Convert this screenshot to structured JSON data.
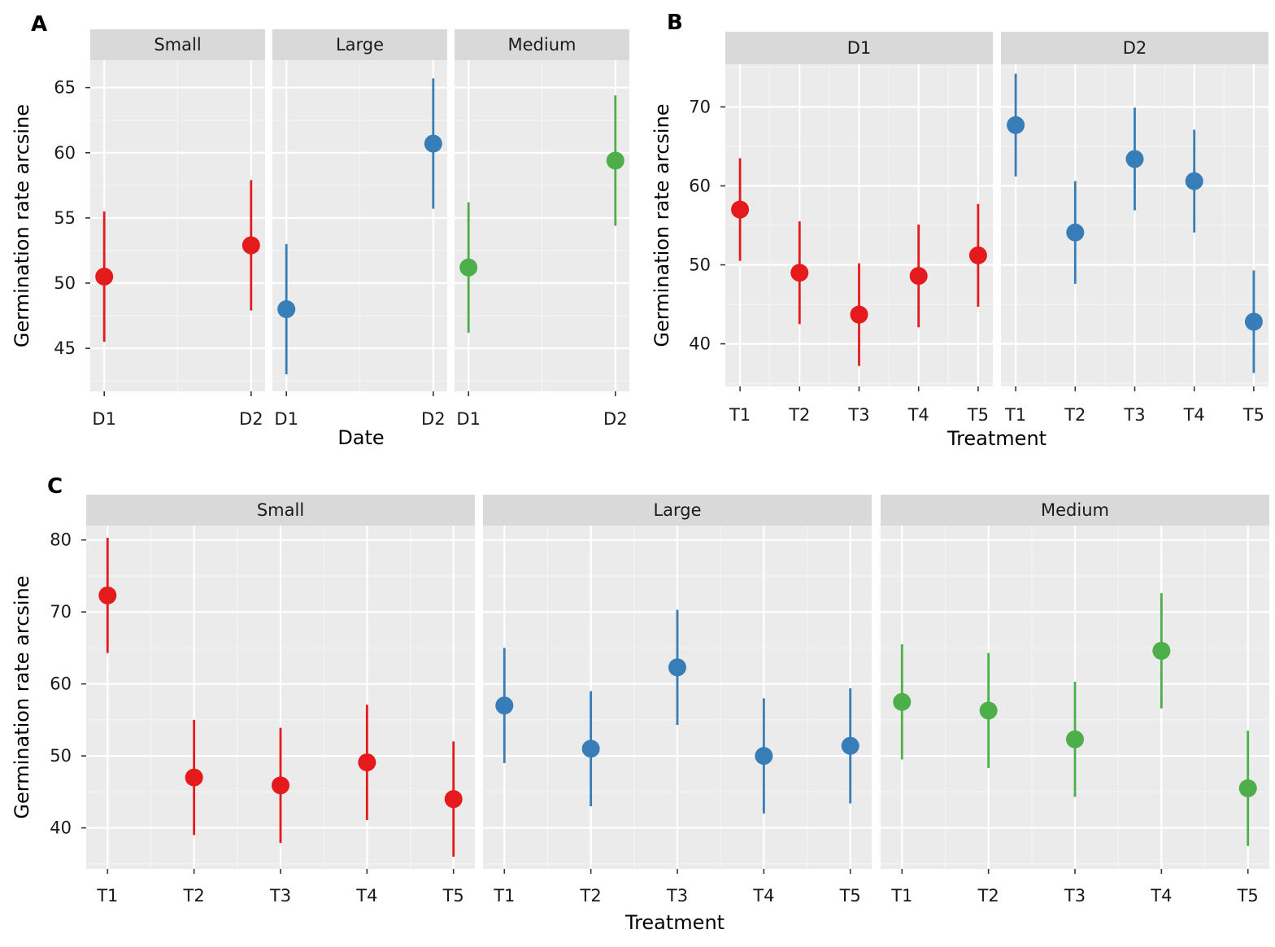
{
  "colors": {
    "red": "#e41a1c",
    "blue": "#377eb8",
    "green": "#4daf4a"
  },
  "chart_data": [
    {
      "id": "A",
      "type": "scatter",
      "panel_label": "A",
      "xlabel": "Date",
      "ylabel": "Germination rate arcsine",
      "ylim": [
        41.7,
        67.1
      ],
      "yticks": [
        45,
        50,
        55,
        60,
        65
      ],
      "categories": [
        "D1",
        "D2"
      ],
      "grid": true,
      "facets": [
        {
          "name": "Small",
          "color": "#e41a1c",
          "points": [
            {
              "x": "D1",
              "y": 50.5,
              "lower": 45.5,
              "upper": 55.5
            },
            {
              "x": "D2",
              "y": 52.9,
              "lower": 47.9,
              "upper": 57.9
            }
          ]
        },
        {
          "name": "Large",
          "color": "#377eb8",
          "points": [
            {
              "x": "D1",
              "y": 48.0,
              "lower": 43.0,
              "upper": 53.0
            },
            {
              "x": "D2",
              "y": 60.7,
              "lower": 55.7,
              "upper": 65.7
            }
          ]
        },
        {
          "name": "Medium",
          "color": "#4daf4a",
          "points": [
            {
              "x": "D1",
              "y": 51.2,
              "lower": 46.2,
              "upper": 56.2
            },
            {
              "x": "D2",
              "y": 59.4,
              "lower": 54.4,
              "upper": 64.4
            }
          ]
        }
      ]
    },
    {
      "id": "B",
      "type": "scatter",
      "panel_label": "B",
      "xlabel": "Treatment",
      "ylabel": "Germination rate arcsine",
      "ylim": [
        34.6,
        75.4
      ],
      "yticks": [
        40,
        50,
        60,
        70
      ],
      "categories": [
        "T1",
        "T2",
        "T3",
        "T4",
        "T5"
      ],
      "grid": true,
      "facets": [
        {
          "name": "D1",
          "color": "#e41a1c",
          "points": [
            {
              "x": "T1",
              "y": 57.0,
              "lower": 50.5,
              "upper": 63.5
            },
            {
              "x": "T2",
              "y": 49.0,
              "lower": 42.5,
              "upper": 55.5
            },
            {
              "x": "T3",
              "y": 43.7,
              "lower": 37.2,
              "upper": 50.2
            },
            {
              "x": "T4",
              "y": 48.6,
              "lower": 42.1,
              "upper": 55.1
            },
            {
              "x": "T5",
              "y": 51.2,
              "lower": 44.7,
              "upper": 57.7
            }
          ]
        },
        {
          "name": "D2",
          "color": "#377eb8",
          "points": [
            {
              "x": "T1",
              "y": 67.7,
              "lower": 61.2,
              "upper": 74.2
            },
            {
              "x": "T2",
              "y": 54.1,
              "lower": 47.6,
              "upper": 60.6
            },
            {
              "x": "T3",
              "y": 63.4,
              "lower": 56.9,
              "upper": 69.9
            },
            {
              "x": "T4",
              "y": 60.6,
              "lower": 54.1,
              "upper": 67.1
            },
            {
              "x": "T5",
              "y": 42.8,
              "lower": 36.3,
              "upper": 49.3
            }
          ]
        }
      ]
    },
    {
      "id": "C",
      "type": "scatter",
      "panel_label": "C",
      "xlabel": "Treatment",
      "ylabel": "Germination rate arcsine",
      "ylim": [
        34.3,
        82.0
      ],
      "yticks": [
        40,
        50,
        60,
        70,
        80
      ],
      "categories": [
        "T1",
        "T2",
        "T3",
        "T4",
        "T5"
      ],
      "grid": true,
      "facets": [
        {
          "name": "Small",
          "color": "#e41a1c",
          "points": [
            {
              "x": "T1",
              "y": 72.3,
              "lower": 64.3,
              "upper": 80.3
            },
            {
              "x": "T2",
              "y": 47.0,
              "lower": 39.0,
              "upper": 55.0
            },
            {
              "x": "T3",
              "y": 45.9,
              "lower": 37.9,
              "upper": 53.9
            },
            {
              "x": "T4",
              "y": 49.1,
              "lower": 41.1,
              "upper": 57.1
            },
            {
              "x": "T5",
              "y": 44.0,
              "lower": 36.0,
              "upper": 52.0
            }
          ]
        },
        {
          "name": "Large",
          "color": "#377eb8",
          "points": [
            {
              "x": "T1",
              "y": 57.0,
              "lower": 49.0,
              "upper": 65.0
            },
            {
              "x": "T2",
              "y": 51.0,
              "lower": 43.0,
              "upper": 59.0
            },
            {
              "x": "T3",
              "y": 62.3,
              "lower": 54.3,
              "upper": 70.3
            },
            {
              "x": "T4",
              "y": 50.0,
              "lower": 42.0,
              "upper": 58.0
            },
            {
              "x": "T5",
              "y": 51.4,
              "lower": 43.4,
              "upper": 59.4
            }
          ]
        },
        {
          "name": "Medium",
          "color": "#4daf4a",
          "points": [
            {
              "x": "T1",
              "y": 57.5,
              "lower": 49.5,
              "upper": 65.5
            },
            {
              "x": "T2",
              "y": 56.3,
              "lower": 48.3,
              "upper": 64.3
            },
            {
              "x": "T3",
              "y": 52.3,
              "lower": 44.3,
              "upper": 60.3
            },
            {
              "x": "T4",
              "y": 64.6,
              "lower": 56.6,
              "upper": 72.6
            },
            {
              "x": "T5",
              "y": 45.5,
              "lower": 37.5,
              "upper": 53.5
            }
          ]
        }
      ]
    }
  ]
}
